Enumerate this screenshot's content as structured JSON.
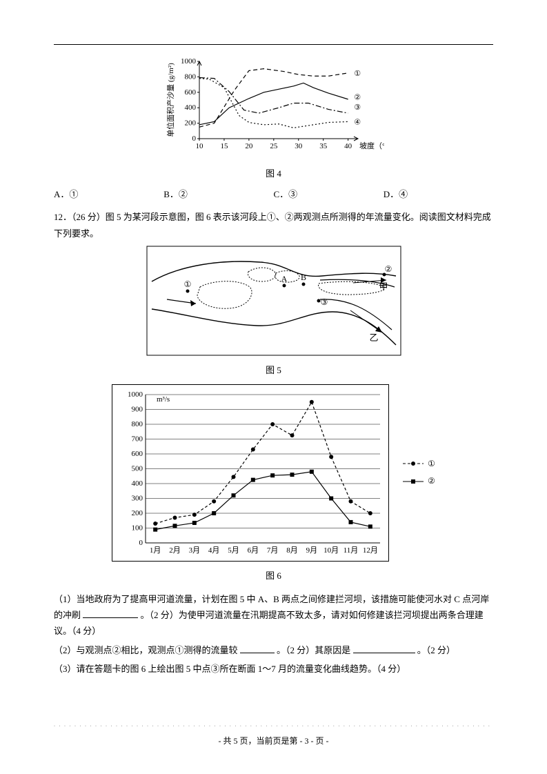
{
  "figure4": {
    "type": "line",
    "caption": "图 4",
    "x_axis_label": "坡度（°）",
    "y_axis_label": "单位面积产沙量 (g/m²)",
    "x_ticks": [
      10,
      15,
      20,
      25,
      30,
      35,
      40
    ],
    "y_ticks": [
      0,
      200,
      400,
      600,
      800,
      1000
    ],
    "xlim": [
      10,
      42
    ],
    "ylim": [
      0,
      1000
    ],
    "axis_color": "#000000",
    "series_color": "#000000",
    "font_size": 11,
    "series": [
      {
        "name": "①",
        "dash": "6,4",
        "marker": "none",
        "points": [
          [
            10,
            150
          ],
          [
            13,
            200
          ],
          [
            17,
            620
          ],
          [
            20,
            880
          ],
          [
            23,
            905
          ],
          [
            27,
            870
          ],
          [
            30,
            830
          ],
          [
            33,
            810
          ],
          [
            36,
            810
          ],
          [
            40,
            850
          ]
        ],
        "label_pos": [
          41.2,
          840
        ]
      },
      {
        "name": "②",
        "dash": "none",
        "marker": "none",
        "points": [
          [
            10,
            180
          ],
          [
            13,
            220
          ],
          [
            16,
            400
          ],
          [
            20,
            520
          ],
          [
            23,
            600
          ],
          [
            26,
            640
          ],
          [
            29,
            680
          ],
          [
            31,
            720
          ],
          [
            33,
            660
          ],
          [
            36,
            590
          ],
          [
            40,
            510
          ]
        ],
        "label_pos": [
          41.2,
          530
        ]
      },
      {
        "name": "③",
        "dash": "8,3,2,3",
        "marker": "none",
        "points": [
          [
            10,
            790
          ],
          [
            13,
            780
          ],
          [
            16,
            610
          ],
          [
            19,
            370
          ],
          [
            22,
            330
          ],
          [
            26,
            400
          ],
          [
            29,
            460
          ],
          [
            32,
            460
          ],
          [
            36,
            380
          ],
          [
            40,
            330
          ]
        ],
        "label_pos": [
          41.2,
          400
        ]
      },
      {
        "name": "④",
        "dash": "2,3",
        "marker": "none",
        "points": [
          [
            10,
            780
          ],
          [
            12,
            770
          ],
          [
            15,
            660
          ],
          [
            18,
            300
          ],
          [
            20,
            210
          ],
          [
            23,
            180
          ],
          [
            26,
            190
          ],
          [
            29,
            140
          ],
          [
            32,
            170
          ],
          [
            36,
            210
          ],
          [
            40,
            220
          ]
        ],
        "label_pos": [
          41.2,
          210
        ]
      }
    ]
  },
  "options": {
    "A": "A．①",
    "B": "B．②",
    "C": "C．③",
    "D": "D．④"
  },
  "q12": {
    "stem": "12．（26 分）图 5 为某河段示意图，图 6 表示该河段上①、②两观测点所测得的年流量变化。阅读图文材料完成下列要求。",
    "sub1_a": "（1）当地政府为了提高甲河道流量，计划在图 5 中 A、B 两点之间修建拦河坝，该措施可能使河水对 C 点河岸的冲刷",
    "sub1_b": "。（2 分）为使甲河道流量在汛期提高不致太多，请对如何修建该拦河坝提出两条合理建议。（4 分）",
    "sub2_a": "（2）与观测点②相比，观测点①测得的流量较",
    "sub2_b": "。（2 分）其原因是",
    "sub2_c": "。（2 分）",
    "sub3": "（3）请在答题卡的图 6 上绘出图 5 中点③所在断面 1～7 月的流量变化曲线趋势。（4 分）"
  },
  "figure5": {
    "caption": "图 5",
    "labels": {
      "one": "①",
      "A": "A",
      "B": "B",
      "two": "②",
      "three": "③",
      "jia": "甲",
      "yi": "乙"
    },
    "stroke": "#000000"
  },
  "figure6": {
    "type": "line",
    "caption": "图 6",
    "unit_label": "m³/s",
    "y_ticks": [
      0,
      100,
      200,
      300,
      400,
      500,
      600,
      700,
      800,
      900,
      1000
    ],
    "x_ticks": [
      "1月",
      "2月",
      "3月",
      "4月",
      "5月",
      "6月",
      "7月",
      "8月",
      "9月",
      "10月",
      "11月",
      "12月"
    ],
    "ylim": [
      0,
      1000
    ],
    "axis_color": "#000000",
    "grid_color": "#000000",
    "font_size": 11,
    "legend": [
      {
        "name": "①",
        "marker": "circle"
      },
      {
        "name": "②",
        "marker": "square"
      }
    ],
    "series": [
      {
        "name": "①",
        "marker": "circle",
        "values": [
          130,
          170,
          190,
          280,
          445,
          630,
          800,
          725,
          950,
          580,
          280,
          200
        ]
      },
      {
        "name": "②",
        "marker": "square",
        "values": [
          90,
          115,
          135,
          200,
          320,
          425,
          455,
          460,
          480,
          300,
          140,
          110
        ]
      }
    ]
  },
  "footer": "- 共 5 页，当前页是第 - 3 - 页 -"
}
